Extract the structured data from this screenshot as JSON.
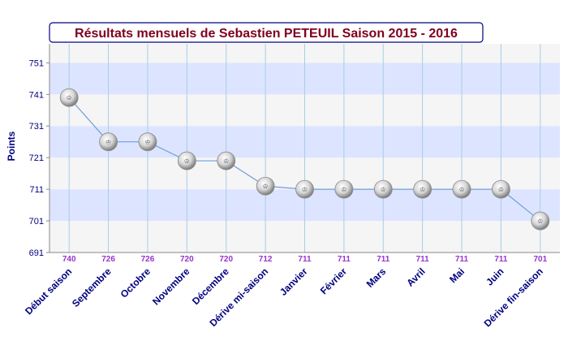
{
  "chart_data": {
    "type": "line",
    "title": "Résultats mensuels de Sebastien PETEUIL Saison 2015 - 2016",
    "ylabel": "Points",
    "xlabel": "",
    "categories": [
      "Début saison",
      "Septembre",
      "Octobre",
      "Novembre",
      "Décembre",
      "Dérive mi-saison",
      "Janvier",
      "Février",
      "Mars",
      "Avril",
      "Mai",
      "Juin",
      "Dérive fin-saison"
    ],
    "series": [
      {
        "values": [
          740,
          726,
          726,
          720,
          720,
          712,
          711,
          711,
          711,
          711,
          711,
          711,
          701
        ]
      }
    ],
    "data_labels": [
      "740",
      "726",
      "726",
      "720",
      "720",
      "712",
      "711",
      "711",
      "711",
      "711",
      "711",
      "711",
      "701"
    ],
    "ylim": [
      691,
      757
    ],
    "yticks": [
      691,
      701,
      711,
      721,
      731,
      741,
      751
    ],
    "ytick_labels": [
      "691",
      "701",
      "711",
      "721",
      "731",
      "741",
      "751"
    ],
    "band_colors": [
      "#dde4ff",
      "#f5f5f5"
    ],
    "line_color": "#6fa0d8",
    "label_color": "#9933cc",
    "category_color": "#000080",
    "title_color": "#800020",
    "grid": true,
    "marker_glyph": "♔"
  }
}
